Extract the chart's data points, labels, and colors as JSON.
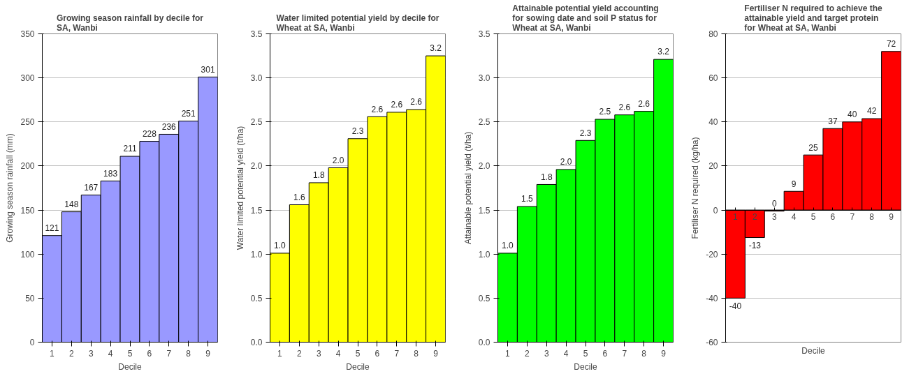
{
  "chart_data": [
    {
      "type": "bar",
      "title": "Growing season rainfall by decile for\nSA, Wanbi",
      "xlabel": "Decile",
      "ylabel": "Growing season rainfall (mm)",
      "categories": [
        "1",
        "2",
        "3",
        "4",
        "5",
        "6",
        "7",
        "8",
        "9"
      ],
      "values": [
        121,
        148,
        167,
        183,
        211,
        228,
        236,
        251,
        301
      ],
      "color": "#9999ff",
      "data_labels": true,
      "ylim": [
        0,
        350
      ],
      "yticks": [
        0,
        50,
        100,
        150,
        200,
        250,
        300,
        350
      ],
      "grid": "y"
    },
    {
      "type": "bar",
      "title": "Water limited potential yield by decile for\nWheat at SA, Wanbi",
      "xlabel": "Decile",
      "ylabel": "Water limited potential yield (t/ha)",
      "categories": [
        "1",
        "2",
        "3",
        "4",
        "5",
        "6",
        "7",
        "8",
        "9"
      ],
      "values": [
        1.01,
        1.56,
        1.81,
        1.98,
        2.31,
        2.56,
        2.61,
        2.64,
        3.25
      ],
      "value_labels": [
        "1.0",
        "1.6",
        "1.8",
        "2.0",
        "2.3",
        "2.6",
        "2.6",
        "2.6",
        "3.2"
      ],
      "color": "#ffff00",
      "ylim": [
        0,
        3.5
      ],
      "yticks": [
        {
          "value": 0,
          "label": "0.0"
        },
        {
          "value": 0.5,
          "label": "0.5"
        },
        {
          "value": 1,
          "label": "1.0"
        },
        {
          "value": 1.5,
          "label": "1.5"
        },
        {
          "value": 2,
          "label": "2.0"
        },
        {
          "value": 2.5,
          "label": "2.5"
        },
        {
          "value": 3,
          "label": "3.0"
        },
        {
          "value": 3.5,
          "label": "3.5"
        }
      ],
      "grid": "y"
    },
    {
      "type": "bar",
      "title": "Attainable potential yield accounting\nfor sowing date and soil P status for\nWheat at SA, Wanbi",
      "xlabel": "Decile",
      "ylabel": "Attainable potential yield (t/ha)",
      "categories": [
        "1",
        "2",
        "3",
        "4",
        "5",
        "6",
        "7",
        "8",
        "9"
      ],
      "values": [
        1.01,
        1.54,
        1.79,
        1.96,
        2.29,
        2.53,
        2.58,
        2.62,
        3.21
      ],
      "value_labels": [
        "1.0",
        "1.5",
        "1.8",
        "2.0",
        "2.3",
        "2.5",
        "2.6",
        "2.6",
        "3.2"
      ],
      "color": "#00ff00",
      "ylim": [
        0,
        3.5
      ],
      "yticks": [
        {
          "value": 0,
          "label": "0.0"
        },
        {
          "value": 0.5,
          "label": "0.5"
        },
        {
          "value": 1,
          "label": "1.0"
        },
        {
          "value": 1.5,
          "label": "1.5"
        },
        {
          "value": 2,
          "label": "2.0"
        },
        {
          "value": 2.5,
          "label": "2.5"
        },
        {
          "value": 3,
          "label": "3.0"
        },
        {
          "value": 3.5,
          "label": "3.5"
        }
      ],
      "grid": "y"
    },
    {
      "type": "bar",
      "title": "Fertiliser N required to achieve the\nattainable yield and target protein\nfor Wheat at SA, Wanbi",
      "xlabel": "Decile",
      "ylabel": "Fertiliser N required (kg/ha)",
      "categories": [
        "1",
        "2",
        "3",
        "4",
        "5",
        "6",
        "7",
        "8",
        "9"
      ],
      "values": [
        -40,
        -12.5,
        -0.5,
        8.5,
        25,
        37,
        40,
        41.5,
        72
      ],
      "value_labels": [
        "-40",
        "-13",
        "0",
        "9",
        "25",
        "37",
        "40",
        "42",
        "72"
      ],
      "color": "#ff0000",
      "ylim": [
        -60,
        80
      ],
      "yticks": [
        -60,
        -40,
        -20,
        0,
        20,
        40,
        60,
        80
      ],
      "grid": "y"
    }
  ]
}
